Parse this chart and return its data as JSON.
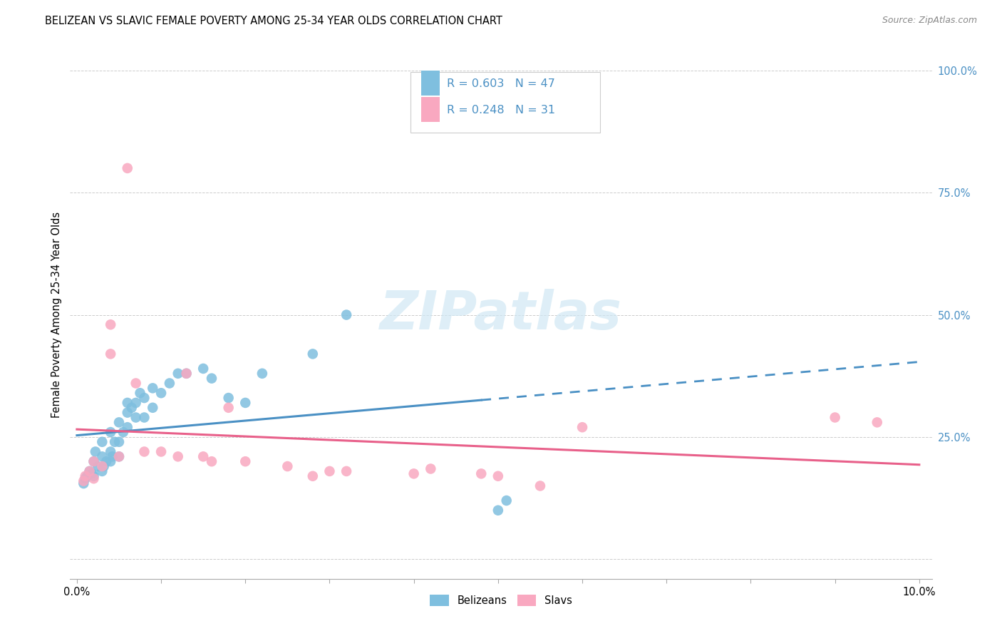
{
  "title": "BELIZEAN VS SLAVIC FEMALE POVERTY AMONG 25-34 YEAR OLDS CORRELATION CHART",
  "source": "Source: ZipAtlas.com",
  "ylabel": "Female Poverty Among 25-34 Year Olds",
  "ytick_labels": [
    "",
    "25.0%",
    "50.0%",
    "75.0%",
    "100.0%"
  ],
  "ytick_vals": [
    0.0,
    0.25,
    0.5,
    0.75,
    1.0
  ],
  "legend_r1": "R = 0.603",
  "legend_n1": "N = 47",
  "legend_r2": "R = 0.248",
  "legend_n2": "N = 31",
  "color_blue": "#7fbfdf",
  "color_pink": "#f9a8c0",
  "color_blue_line": "#4a90c4",
  "color_pink_line": "#e8608a",
  "color_blue_text": "#4a90c4",
  "color_right_ticks": "#4a90c4",
  "watermark_color": "#d0e8f4",
  "bel_x": [
    0.0008,
    0.001,
    0.0012,
    0.0015,
    0.0018,
    0.002,
    0.002,
    0.0022,
    0.0025,
    0.003,
    0.003,
    0.003,
    0.0032,
    0.0035,
    0.004,
    0.004,
    0.004,
    0.0042,
    0.0045,
    0.005,
    0.005,
    0.005,
    0.0055,
    0.006,
    0.006,
    0.006,
    0.0065,
    0.007,
    0.007,
    0.0075,
    0.008,
    0.008,
    0.009,
    0.009,
    0.01,
    0.011,
    0.012,
    0.013,
    0.015,
    0.016,
    0.018,
    0.02,
    0.022,
    0.028,
    0.032,
    0.05,
    0.051
  ],
  "bel_y": [
    0.155,
    0.165,
    0.17,
    0.18,
    0.175,
    0.17,
    0.2,
    0.22,
    0.19,
    0.18,
    0.21,
    0.24,
    0.19,
    0.2,
    0.2,
    0.22,
    0.26,
    0.21,
    0.24,
    0.21,
    0.24,
    0.28,
    0.26,
    0.27,
    0.3,
    0.32,
    0.31,
    0.29,
    0.32,
    0.34,
    0.29,
    0.33,
    0.31,
    0.35,
    0.34,
    0.36,
    0.38,
    0.38,
    0.39,
    0.37,
    0.33,
    0.32,
    0.38,
    0.42,
    0.5,
    0.1,
    0.12
  ],
  "slav_x": [
    0.0008,
    0.001,
    0.0015,
    0.002,
    0.002,
    0.003,
    0.004,
    0.004,
    0.005,
    0.006,
    0.007,
    0.008,
    0.01,
    0.012,
    0.013,
    0.015,
    0.016,
    0.018,
    0.02,
    0.025,
    0.028,
    0.03,
    0.032,
    0.04,
    0.042,
    0.048,
    0.05,
    0.055,
    0.06,
    0.09,
    0.095
  ],
  "slav_y": [
    0.16,
    0.17,
    0.18,
    0.165,
    0.2,
    0.19,
    0.48,
    0.42,
    0.21,
    0.8,
    0.36,
    0.22,
    0.22,
    0.21,
    0.38,
    0.21,
    0.2,
    0.31,
    0.2,
    0.19,
    0.17,
    0.18,
    0.18,
    0.175,
    0.185,
    0.175,
    0.17,
    0.15,
    0.27,
    0.29,
    0.28
  ]
}
